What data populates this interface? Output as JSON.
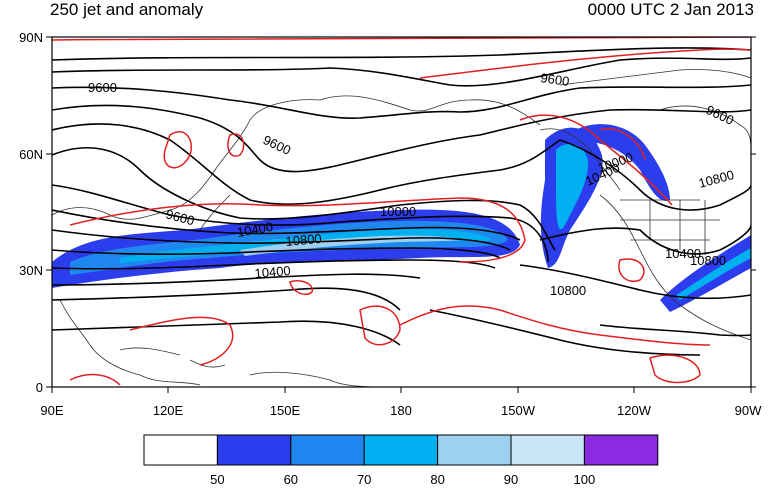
{
  "title_left": "250 jet and anomaly",
  "title_right": "0000 UTC 2 Jan 2013",
  "lat_labels": [
    "90N",
    "60N",
    "30N",
    "0"
  ],
  "lon_labels": [
    "90E",
    "120E",
    "150E",
    "180",
    "150W",
    "120W",
    "90W"
  ],
  "contour_labels": [
    "9600",
    "9600",
    "9600",
    "9600",
    "9600",
    "10000",
    "10400",
    "10800",
    "10400",
    "10800",
    "10400",
    "10800",
    "10800",
    "10000",
    "10400"
  ],
  "colorbar": {
    "colors": [
      "#ffffff",
      "#2b3ded",
      "#1e88f0",
      "#00b0f0",
      "#9ed0f0",
      "#c8e6f5",
      "#8a2be2"
    ],
    "labels": [
      "50",
      "60",
      "70",
      "80",
      "90",
      "100"
    ]
  },
  "colors": {
    "contour": "#000000",
    "anomaly": "#e02020",
    "coast": "#333333"
  }
}
